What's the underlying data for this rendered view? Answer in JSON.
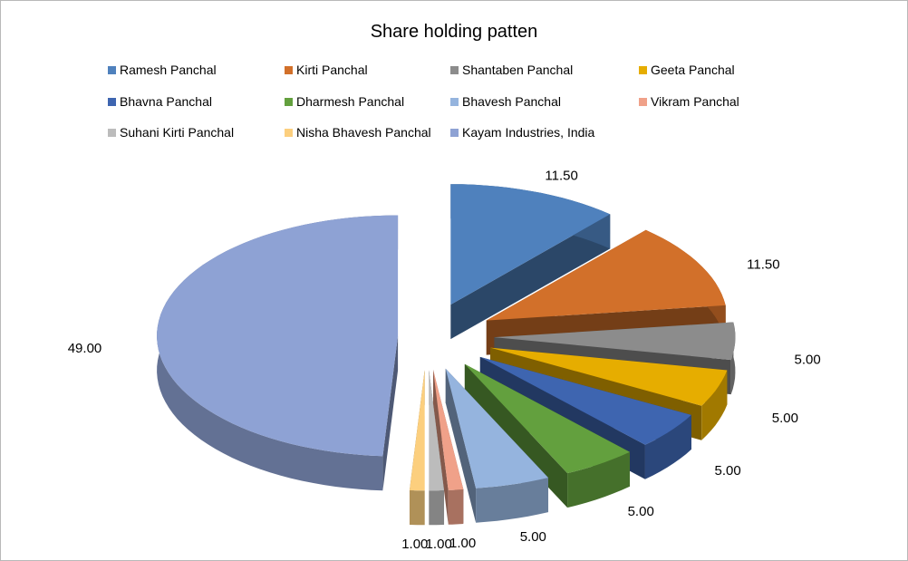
{
  "chart_data": {
    "type": "pie",
    "title": "Share holding patten",
    "legend_position": "top",
    "labels": [
      "Ramesh Panchal",
      "Kirti Panchal",
      "Shantaben Panchal",
      "Geeta Panchal",
      "Bhavna Panchal",
      "Dharmesh Panchal",
      "Bhavesh Panchal",
      "Vikram Panchal",
      "Suhani Kirti Panchal",
      "Nisha Bhavesh Panchal",
      "Kayam Industries, India"
    ],
    "values": [
      11.5,
      11.5,
      5,
      5,
      5,
      5,
      5,
      1,
      1,
      1,
      49
    ],
    "data_labels": [
      "11.50",
      "11.50",
      "5.00",
      "5.00",
      "5.00",
      "5.00",
      "5.00",
      "1.00",
      "1.00",
      "1.00",
      "49.00"
    ],
    "colors": [
      "#4F81BD",
      "#D2702A",
      "#8C8C8C",
      "#E6AD00",
      "#3E65B0",
      "#63A03E",
      "#95B4DE",
      "#F0A189",
      "#BCBCBC",
      "#FCCF7E",
      "#8EA2D4"
    ],
    "exploded": true,
    "three_d": true
  }
}
